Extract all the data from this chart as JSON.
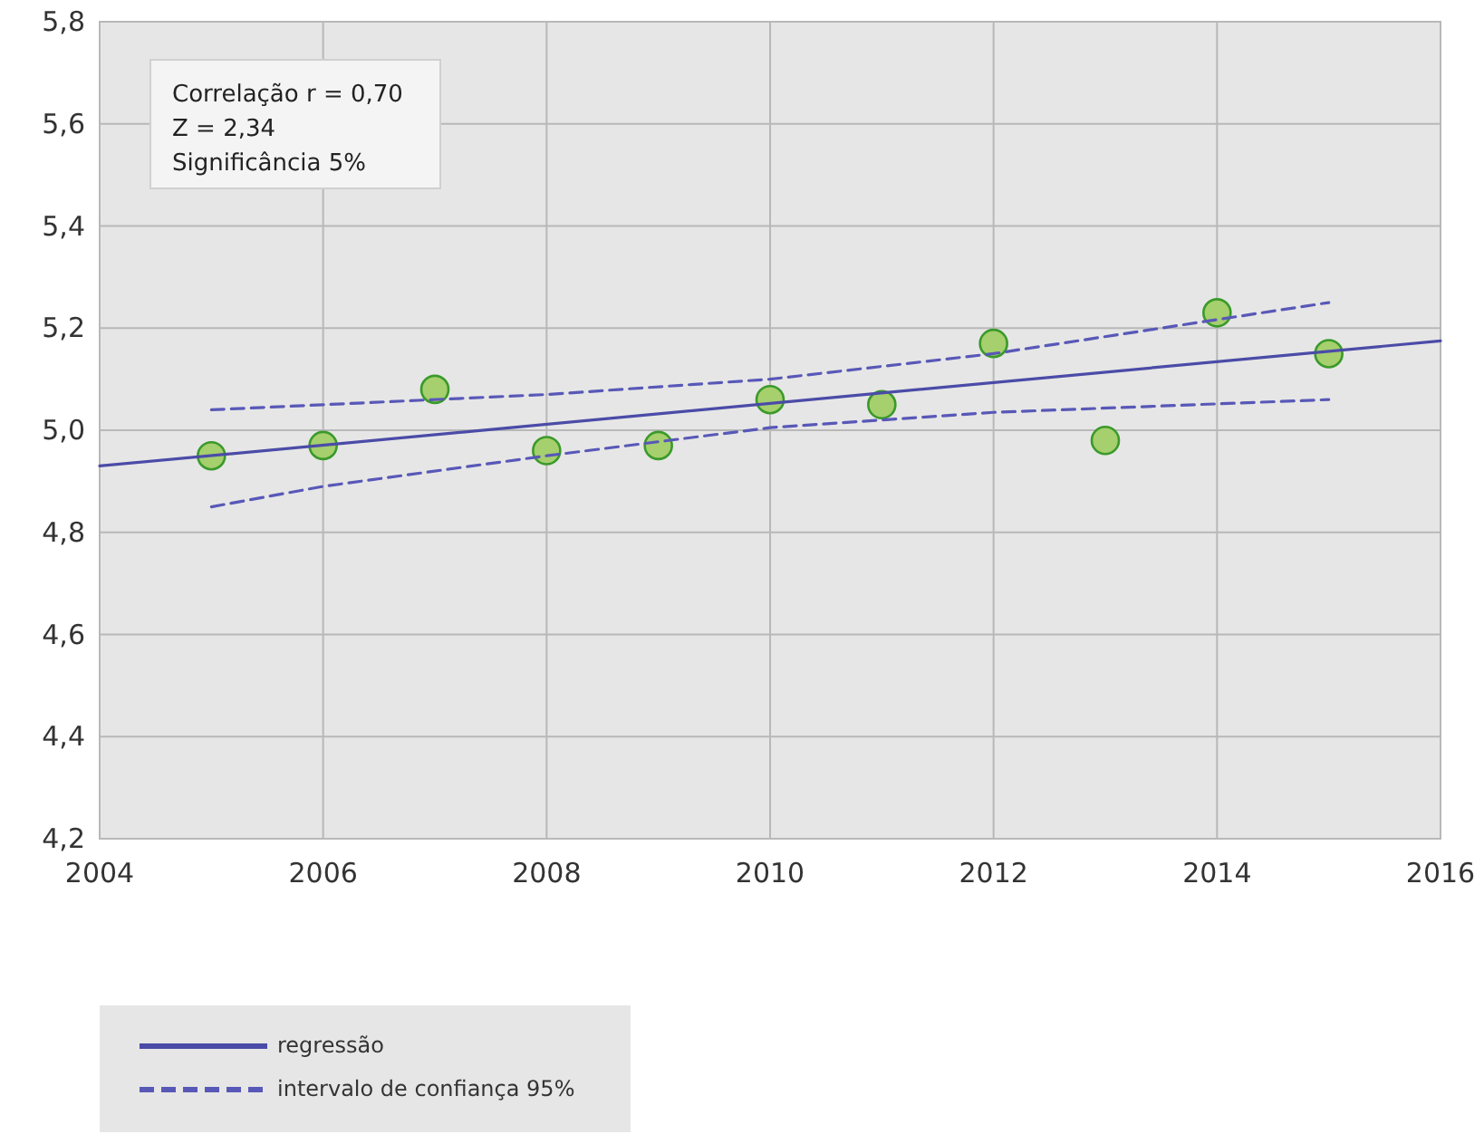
{
  "chart_data": {
    "type": "scatter",
    "x": [
      2005,
      2006,
      2007,
      2008,
      2009,
      2010,
      2011,
      2012,
      2013,
      2014,
      2015
    ],
    "series": [
      {
        "type": "scatter",
        "color": "#a6cf6e",
        "marker": "circle",
        "values": [
          4.95,
          4.97,
          5.08,
          4.96,
          4.97,
          5.06,
          5.05,
          5.17,
          4.98,
          5.23,
          5.15
        ]
      },
      {
        "type": "line",
        "name": "regressão",
        "color": "#4b4ba8",
        "line_style": "solid",
        "marker": "none",
        "x": [
          2004,
          2016
        ],
        "values": [
          4.93,
          5.175
        ]
      },
      {
        "type": "line",
        "name": "intervalo de confiança 95%",
        "color": "#5858b8",
        "line_style": "dashed",
        "marker": "none",
        "x": [
          2005,
          2006,
          2008,
          2010,
          2012,
          2015
        ],
        "values": [
          5.04,
          5.05,
          5.07,
          5.1,
          5.15,
          5.25
        ]
      },
      {
        "type": "line",
        "color": "#5858b8",
        "line_style": "dashed",
        "marker": "none",
        "x": [
          2005,
          2006,
          2008,
          2010,
          2012,
          2015
        ],
        "values": [
          4.85,
          4.89,
          4.95,
          5.005,
          5.035,
          5.06
        ]
      }
    ],
    "xlim": [
      2004,
      2016
    ],
    "xticks": [
      2004,
      2006,
      2008,
      2010,
      2012,
      2014,
      2016
    ],
    "ylim": [
      4.2,
      5.8
    ],
    "yticks": [
      {
        "value": 4.2,
        "label": "4,2"
      },
      {
        "value": 4.4,
        "label": "4,4"
      },
      {
        "value": 4.6,
        "label": "4,6"
      },
      {
        "value": 4.8,
        "label": "4,8"
      },
      {
        "value": 5.0,
        "label": "5,0"
      },
      {
        "value": 5.2,
        "label": "5,2"
      },
      {
        "value": 5.4,
        "label": "5,4"
      },
      {
        "value": 5.6,
        "label": "5,6"
      },
      {
        "value": 5.8,
        "label": "5,8"
      }
    ],
    "grid": true,
    "legend": "bottom left",
    "annotations": [
      "Correlação r = 0,70",
      "Z = 2,34",
      "Significância 5%"
    ]
  }
}
